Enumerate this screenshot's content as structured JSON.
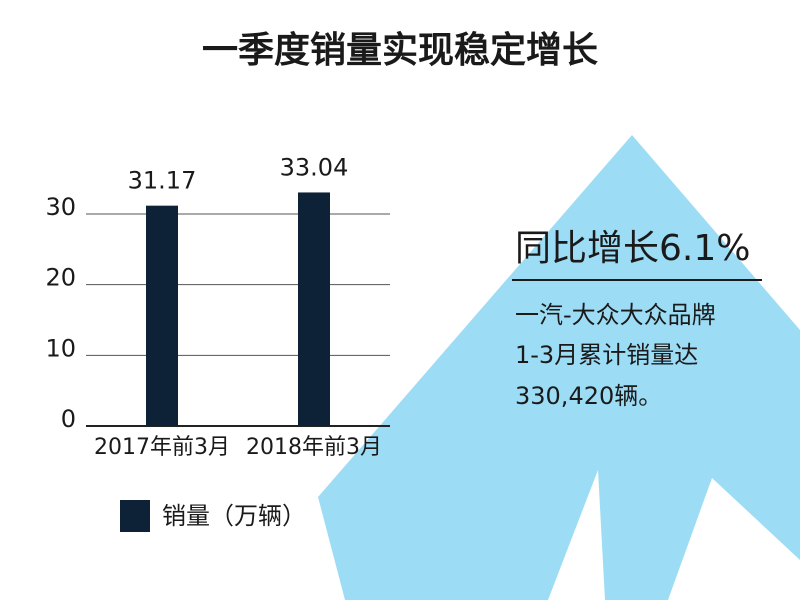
{
  "chart_data": {
    "type": "bar",
    "title": "一季度销量实现稳定增长",
    "categories": [
      "2017年前3月",
      "2018年前3月"
    ],
    "series": [
      {
        "name": "销量（万辆）",
        "color": "#0d2137",
        "values": [
          31.17,
          33.04
        ]
      }
    ],
    "ylim": [
      0,
      35
    ],
    "yticks": [
      0,
      10,
      20,
      30
    ],
    "grid": true,
    "annotations": [
      "同比增长6.1%",
      "一汽-大众大众品牌",
      "1-3月累计销量达",
      "330,420辆。"
    ]
  }
}
